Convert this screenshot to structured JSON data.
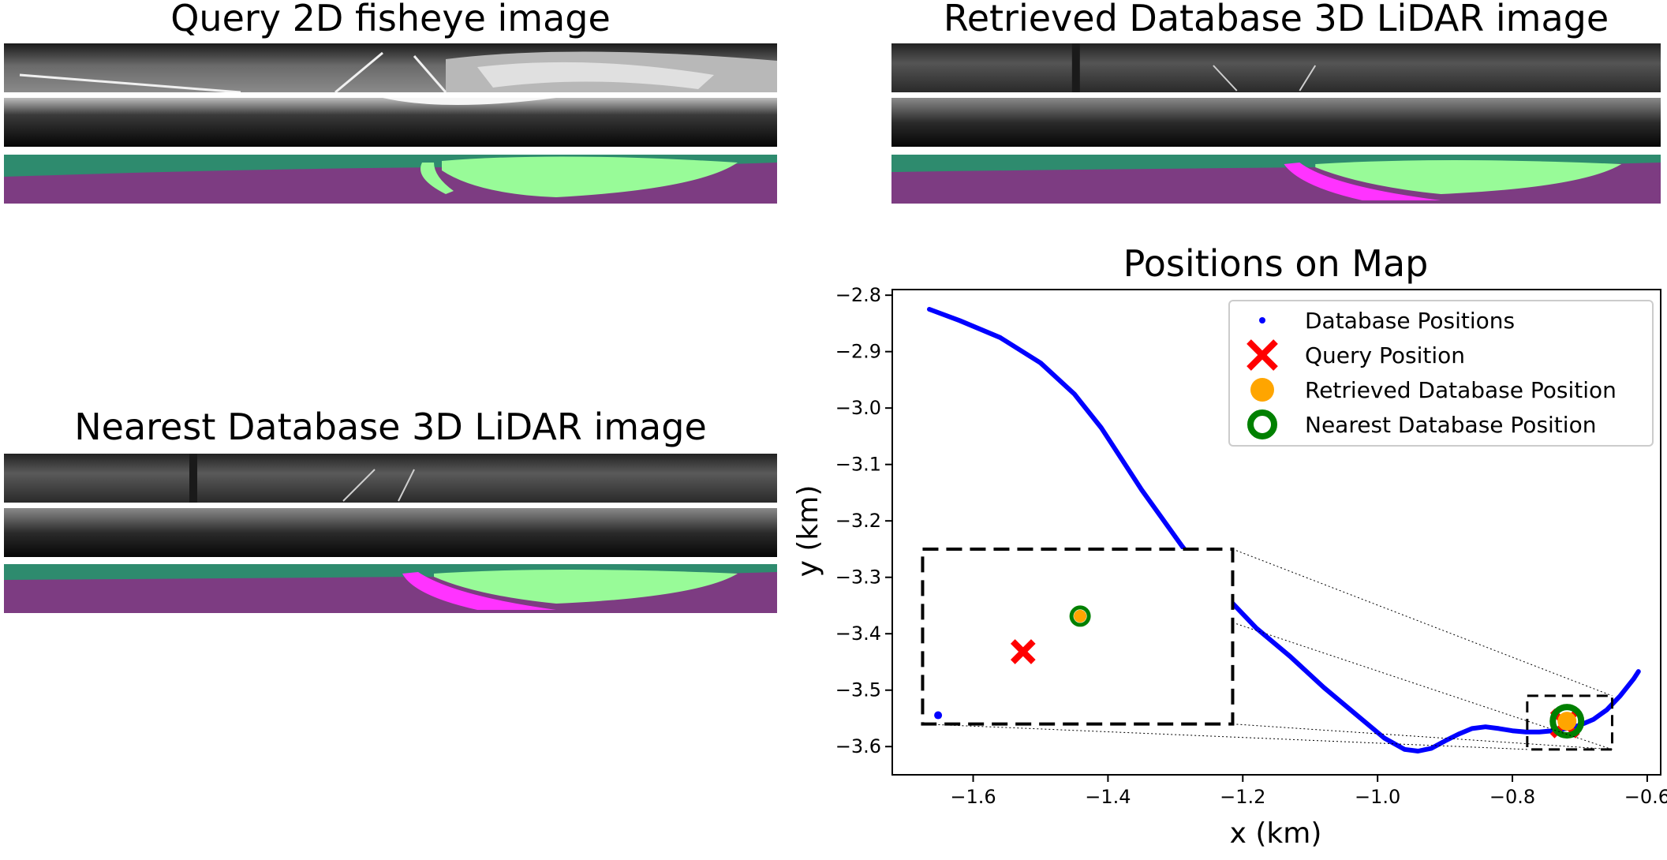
{
  "panels": {
    "query_title": "Query 2D fisheye image",
    "retrieved_title": "Retrieved Database 3D LiDAR image",
    "nearest_title": "Nearest Database 3D LiDAR image"
  },
  "colors": {
    "route": "#0000ff",
    "query": "#ff0000",
    "retrieved": "#ffa500",
    "nearest": "#008000",
    "seg_road": "#7d3c82",
    "seg_vegetation": "#2e8b6e",
    "seg_terrain": "#98fb98",
    "seg_sidewalk": "#ff33ff"
  },
  "chart_data": {
    "type": "scatter",
    "title": "Positions on Map",
    "xlabel": "x (km)",
    "ylabel": "y (km)",
    "xlim": [
      -1.72,
      -0.58
    ],
    "ylim": [
      -3.65,
      -2.79
    ],
    "xticks": [
      "−1.6",
      "−1.4",
      "−1.2",
      "−1.0",
      "−0.8",
      "−0.6"
    ],
    "xtick_values": [
      -1.6,
      -1.4,
      -1.2,
      -1.0,
      -0.8,
      -0.6
    ],
    "yticks": [
      "−2.8",
      "−2.9",
      "−3.0",
      "−3.1",
      "−3.2",
      "−3.3",
      "−3.4",
      "−3.5",
      "−3.6"
    ],
    "ytick_values": [
      -2.8,
      -2.9,
      -3.0,
      -3.1,
      -3.2,
      -3.3,
      -3.4,
      -3.5,
      -3.6
    ],
    "legend_position": "upper right",
    "series": [
      {
        "name": "Database Positions",
        "marker": "dot",
        "x": [
          -1.665,
          -1.62,
          -1.56,
          -1.5,
          -1.45,
          -1.41,
          -1.38,
          -1.35,
          -1.32,
          -1.29,
          -1.26,
          -1.22,
          -1.18,
          -1.13,
          -1.08,
          -1.03,
          -0.99,
          -0.96,
          -0.94,
          -0.92,
          -0.9,
          -0.88,
          -0.86,
          -0.84,
          -0.82,
          -0.8,
          -0.78,
          -0.76,
          -0.74,
          -0.72,
          -0.7,
          -0.68,
          -0.66,
          -0.64,
          -0.62,
          -0.613
        ],
        "y": [
          -2.825,
          -2.845,
          -2.875,
          -2.92,
          -2.975,
          -3.035,
          -3.09,
          -3.145,
          -3.195,
          -3.245,
          -3.29,
          -3.34,
          -3.39,
          -3.44,
          -3.495,
          -3.545,
          -3.585,
          -3.605,
          -3.608,
          -3.603,
          -3.59,
          -3.578,
          -3.568,
          -3.565,
          -3.568,
          -3.572,
          -3.574,
          -3.574,
          -3.572,
          -3.568,
          -3.562,
          -3.552,
          -3.535,
          -3.51,
          -3.48,
          -3.467
        ]
      },
      {
        "name": "Query Position",
        "marker": "x",
        "x": [
          -0.722
        ],
        "y": [
          -3.559
        ]
      },
      {
        "name": "Retrieved Database Position",
        "marker": "filled-circle",
        "x": [
          -0.719
        ],
        "y": [
          -3.555
        ]
      },
      {
        "name": "Nearest Database Position",
        "marker": "ring",
        "x": [
          -0.719
        ],
        "y": [
          -3.555
        ]
      }
    ],
    "inset": {
      "source_xlim": [
        -0.778,
        -0.652
      ],
      "source_ylim": [
        -3.605,
        -3.51
      ],
      "display_xlim": [
        -1.675,
        -1.215
      ],
      "display_ylim": [
        -3.56,
        -3.25
      ],
      "zoom_xlim": [
        -0.745,
        -0.695
      ],
      "zoom_ylim": [
        -3.575,
        -3.545
      ],
      "database_dot": {
        "x": [
          -0.7425
        ],
        "y": [
          -3.5735
        ]
      },
      "query": {
        "x": [
          -0.7288
        ],
        "y": [
          -3.5626
        ]
      },
      "retrieved": {
        "x": [
          -0.7196
        ],
        "y": [
          -3.5565
        ]
      },
      "nearest": {
        "x": [
          -0.7196
        ],
        "y": [
          -3.5565
        ]
      }
    }
  }
}
